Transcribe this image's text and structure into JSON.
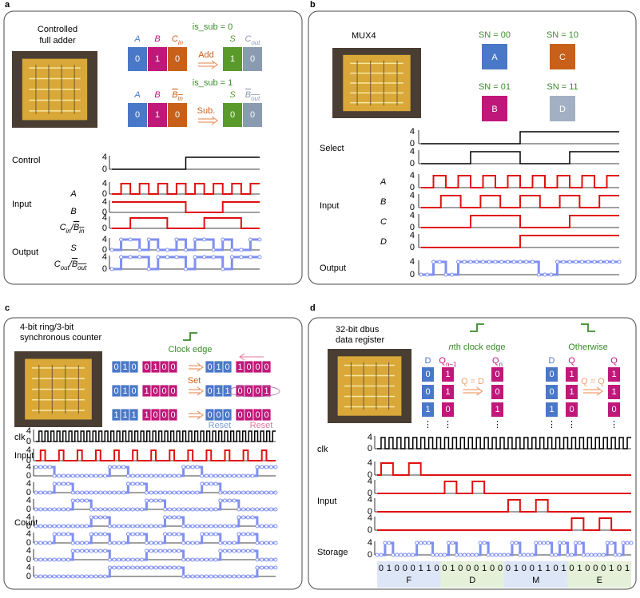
{
  "a": {
    "letter": "a",
    "title": [
      "Controlled",
      "full adder"
    ],
    "cases": [
      {
        "condition": "is_sub = 0",
        "op": "Add",
        "headers": [
          [
            {
              "t": "A"
            }
          ],
          [
            {
              "t": "B"
            }
          ],
          [
            {
              "t": "C"
            },
            {
              "t": "in",
              "sub": true
            }
          ],
          [
            {
              "t": "S"
            }
          ],
          [
            {
              "t": "C"
            },
            {
              "t": "out",
              "sub": true
            }
          ]
        ],
        "values": [
          0,
          1,
          0,
          1,
          0
        ]
      },
      {
        "condition": "is_sub = 1",
        "op": "Sub.",
        "headers": [
          [
            {
              "t": "A"
            }
          ],
          [
            {
              "t": "B"
            }
          ],
          [
            {
              "t": "B",
              "over": true
            },
            {
              "t": "in",
              "sub": true,
              "over": true
            }
          ],
          [
            {
              "t": "S"
            }
          ],
          [
            {
              "t": "B",
              "over": true
            },
            {
              "t": "out",
              "sub": true,
              "over": true
            }
          ]
        ],
        "values": [
          0,
          1,
          0,
          0,
          0
        ]
      }
    ],
    "groups": [
      "Control",
      "Input",
      "Output"
    ],
    "signals": [
      [
        {
          "t": "A"
        }
      ],
      [
        {
          "t": "B"
        }
      ],
      [
        {
          "t": "C"
        },
        {
          "t": "in",
          "sub": true
        },
        {
          "t": "/"
        },
        {
          "t": "B",
          "over": true
        },
        {
          "t": "in",
          "sub": true,
          "over": true
        }
      ],
      [
        {
          "t": "S"
        }
      ],
      [
        {
          "t": "C"
        },
        {
          "t": "out",
          "sub": true
        },
        {
          "t": "/"
        },
        {
          "t": "B",
          "over": true
        },
        {
          "t": "out",
          "sub": true,
          "over": true
        }
      ]
    ],
    "levels": [
      4,
      0
    ]
  },
  "b": {
    "letter": "b",
    "title": "MUX4",
    "selectors": [
      {
        "code": "SN = 00",
        "name": "A",
        "color": "#4a78c8"
      },
      {
        "code": "SN = 10",
        "name": "C",
        "color": "#c8601a"
      },
      {
        "code": "SN = 01",
        "name": "B",
        "color": "#c0187a"
      },
      {
        "code": "SN = 11",
        "name": "D",
        "color": "#a3b0c4"
      }
    ],
    "groups": [
      "Select",
      "Input",
      "Output"
    ],
    "signals": [
      "A",
      "B",
      "C",
      "D"
    ],
    "levels": [
      4,
      0
    ]
  },
  "c": {
    "letter": "c",
    "title": [
      "4-bit ring/3-bit",
      "synchronous counter"
    ],
    "clock_label": "Clock edge",
    "rows": [
      {
        "before": [
          [
            0,
            1,
            0
          ],
          [
            0,
            1,
            0,
            0
          ]
        ],
        "after": [
          [
            0,
            1,
            0
          ],
          [
            1,
            0,
            0,
            0
          ]
        ]
      },
      {
        "before": [
          [
            0,
            1,
            0
          ],
          [
            1,
            0,
            0,
            0
          ]
        ],
        "after": [
          [
            0,
            1,
            1
          ],
          [
            0,
            0,
            0,
            1
          ]
        ]
      },
      {
        "before": [
          [
            1,
            1,
            1
          ],
          [
            1,
            0,
            0,
            0
          ]
        ],
        "after": [
          [
            0,
            0,
            0
          ],
          [
            0,
            0,
            0,
            0
          ]
        ]
      }
    ],
    "set_label": "Set",
    "reset_labels": [
      "Reset",
      "Reset"
    ],
    "groups": [
      "clk",
      "Input",
      "Count"
    ],
    "levels": [
      4,
      0
    ]
  },
  "d": {
    "letter": "d",
    "title": [
      "32-bit dbus",
      "data register"
    ],
    "edge_label": [
      {
        "t": "n",
        "it": true
      },
      {
        "t": "th clock edge"
      }
    ],
    "other_label": "Otherwise",
    "edge": {
      "headers": [
        [
          {
            "t": "D"
          }
        ],
        [
          {
            "t": "Q"
          },
          {
            "t": "n−1",
            "sub": true
          }
        ],
        [
          {
            "t": "Q"
          },
          {
            "t": "n",
            "sub": true
          }
        ]
      ],
      "rule": "Q = D",
      "columns": [
        [
          0,
          0,
          1
        ],
        [
          1,
          1,
          0
        ],
        [
          0,
          0,
          1
        ]
      ]
    },
    "other": {
      "headers": [
        [
          {
            "t": "D"
          }
        ],
        [
          {
            "t": "Q"
          }
        ],
        [
          {
            "t": "Q"
          }
        ]
      ],
      "rule": "Q = Q",
      "columns": [
        [
          0,
          0,
          1
        ],
        [
          1,
          1,
          0
        ],
        [
          1,
          1,
          0
        ]
      ]
    },
    "ellipsis": "⋮",
    "groups": [
      "clk",
      "Input",
      "Storage"
    ],
    "levels": [
      4,
      0
    ],
    "bits": [
      0,
      1,
      0,
      0,
      0,
      1,
      1,
      0,
      0,
      1,
      0,
      0,
      0,
      1,
      0,
      0,
      0,
      1,
      0,
      0,
      1,
      1,
      0,
      1,
      0,
      1,
      0,
      0,
      0,
      1,
      0,
      1
    ],
    "letters": [
      "F",
      "D",
      "M",
      "E"
    ]
  }
}
